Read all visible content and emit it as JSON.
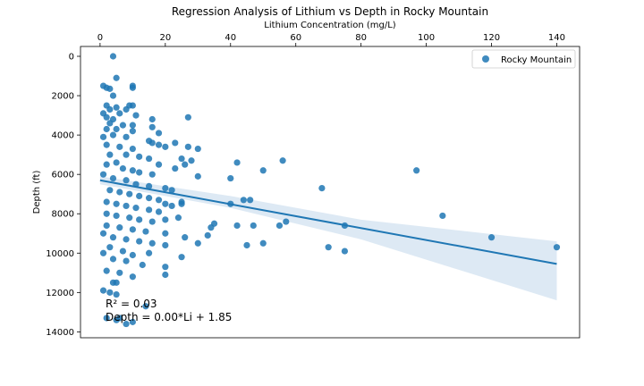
{
  "chart_data": {
    "type": "scatter",
    "title": "Regression Analysis of Lithium vs Depth in Rocky Mountain",
    "xlabel": "Lithium Concentration (mg/L)",
    "ylabel": "Depth (ft)",
    "xlim": [
      -6,
      147
    ],
    "ylim": [
      14300,
      -500
    ],
    "y_inverted": true,
    "x_axis_position": "top",
    "x_ticks": [
      0,
      20,
      40,
      60,
      80,
      100,
      120,
      140
    ],
    "y_ticks": [
      0,
      2000,
      4000,
      6000,
      8000,
      10000,
      12000,
      14000
    ],
    "grid": false,
    "legend": {
      "position": "top-right",
      "entries": [
        "Rocky Mountain"
      ]
    },
    "colors": {
      "points": "#1f77b4",
      "line": "#1f77b4",
      "band": "#bcd3ea",
      "frame": "#000000"
    },
    "series": [
      {
        "name": "Rocky Mountain",
        "points": [
          [
            4,
            0
          ],
          [
            5,
            1100
          ],
          [
            1,
            1500
          ],
          [
            2,
            1600
          ],
          [
            3,
            1650
          ],
          [
            10,
            1500
          ],
          [
            10,
            1600
          ],
          [
            4,
            2000
          ],
          [
            2,
            2500
          ],
          [
            5,
            2600
          ],
          [
            9,
            2500
          ],
          [
            10,
            2500
          ],
          [
            8,
            2700
          ],
          [
            3,
            2700
          ],
          [
            1,
            2900
          ],
          [
            6,
            2900
          ],
          [
            11,
            3000
          ],
          [
            2,
            3100
          ],
          [
            4,
            3200
          ],
          [
            16,
            3200
          ],
          [
            27,
            3100
          ],
          [
            3,
            3400
          ],
          [
            7,
            3500
          ],
          [
            10,
            3500
          ],
          [
            16,
            3600
          ],
          [
            2,
            3700
          ],
          [
            5,
            3700
          ],
          [
            10,
            3800
          ],
          [
            18,
            3900
          ],
          [
            4,
            4000
          ],
          [
            8,
            4100
          ],
          [
            1,
            4100
          ],
          [
            15,
            4300
          ],
          [
            16,
            4400
          ],
          [
            18,
            4500
          ],
          [
            20,
            4600
          ],
          [
            23,
            4400
          ],
          [
            27,
            4600
          ],
          [
            30,
            4700
          ],
          [
            2,
            4500
          ],
          [
            6,
            4600
          ],
          [
            10,
            4700
          ],
          [
            3,
            5000
          ],
          [
            8,
            5000
          ],
          [
            12,
            5100
          ],
          [
            15,
            5200
          ],
          [
            18,
            5500
          ],
          [
            25,
            5200
          ],
          [
            26,
            5500
          ],
          [
            28,
            5300
          ],
          [
            23,
            5700
          ],
          [
            42,
            5400
          ],
          [
            50,
            5800
          ],
          [
            56,
            5300
          ],
          [
            2,
            5500
          ],
          [
            5,
            5400
          ],
          [
            7,
            5700
          ],
          [
            10,
            5800
          ],
          [
            12,
            5900
          ],
          [
            16,
            6000
          ],
          [
            30,
            6100
          ],
          [
            40,
            6200
          ],
          [
            1,
            6000
          ],
          [
            4,
            6200
          ],
          [
            8,
            6300
          ],
          [
            11,
            6500
          ],
          [
            15,
            6600
          ],
          [
            20,
            6700
          ],
          [
            22,
            6800
          ],
          [
            68,
            6700
          ],
          [
            97,
            5800
          ],
          [
            44,
            7300
          ],
          [
            46,
            7300
          ],
          [
            25,
            7400
          ],
          [
            22,
            7600
          ],
          [
            40,
            7500
          ],
          [
            3,
            6800
          ],
          [
            6,
            6900
          ],
          [
            9,
            7000
          ],
          [
            12,
            7100
          ],
          [
            15,
            7200
          ],
          [
            18,
            7300
          ],
          [
            20,
            7500
          ],
          [
            2,
            7400
          ],
          [
            5,
            7500
          ],
          [
            8,
            7600
          ],
          [
            11,
            7700
          ],
          [
            15,
            7800
          ],
          [
            18,
            7900
          ],
          [
            2,
            8000
          ],
          [
            5,
            8100
          ],
          [
            9,
            8200
          ],
          [
            12,
            8300
          ],
          [
            16,
            8400
          ],
          [
            20,
            8300
          ],
          [
            24,
            8200
          ],
          [
            25,
            7500
          ],
          [
            35,
            8500
          ],
          [
            34,
            8700
          ],
          [
            42,
            8600
          ],
          [
            47,
            8600
          ],
          [
            55,
            8600
          ],
          [
            57,
            8400
          ],
          [
            75,
            8600
          ],
          [
            105,
            8100
          ],
          [
            2,
            8600
          ],
          [
            6,
            8700
          ],
          [
            10,
            8800
          ],
          [
            14,
            8900
          ],
          [
            20,
            9000
          ],
          [
            26,
            9200
          ],
          [
            30,
            9500
          ],
          [
            33,
            9100
          ],
          [
            1,
            9000
          ],
          [
            4,
            9200
          ],
          [
            8,
            9300
          ],
          [
            12,
            9400
          ],
          [
            16,
            9500
          ],
          [
            20,
            9600
          ],
          [
            45,
            9600
          ],
          [
            50,
            9500
          ],
          [
            70,
            9700
          ],
          [
            75,
            9900
          ],
          [
            120,
            9200
          ],
          [
            140,
            9700
          ],
          [
            3,
            9700
          ],
          [
            7,
            9900
          ],
          [
            10,
            10100
          ],
          [
            15,
            10000
          ],
          [
            25,
            10200
          ],
          [
            4,
            10300
          ],
          [
            8,
            10400
          ],
          [
            1,
            10000
          ],
          [
            2,
            10900
          ],
          [
            6,
            11000
          ],
          [
            10,
            11200
          ],
          [
            20,
            10700
          ],
          [
            20,
            11100
          ],
          [
            4,
            11500
          ],
          [
            5,
            11500
          ],
          [
            1,
            11900
          ],
          [
            3,
            12000
          ],
          [
            5,
            12100
          ],
          [
            13,
            10600
          ],
          [
            2,
            13300
          ],
          [
            5,
            13400
          ],
          [
            8,
            13600
          ],
          [
            10,
            13500
          ],
          [
            6,
            13300
          ],
          [
            14,
            12700
          ]
        ]
      }
    ],
    "regression": {
      "fit_line": [
        [
          0,
          6300
        ],
        [
          140,
          10550
        ]
      ],
      "band_upper": [
        [
          0,
          6100
        ],
        [
          40,
          7100
        ],
        [
          80,
          8300
        ],
        [
          140,
          9400
        ]
      ],
      "band_lower": [
        [
          0,
          6500
        ],
        [
          40,
          7700
        ],
        [
          80,
          9300
        ],
        [
          140,
          12400
        ]
      ]
    },
    "annotations": [
      "R² = 0.03",
      "Depth = 0.00*Li + 1.85"
    ]
  }
}
